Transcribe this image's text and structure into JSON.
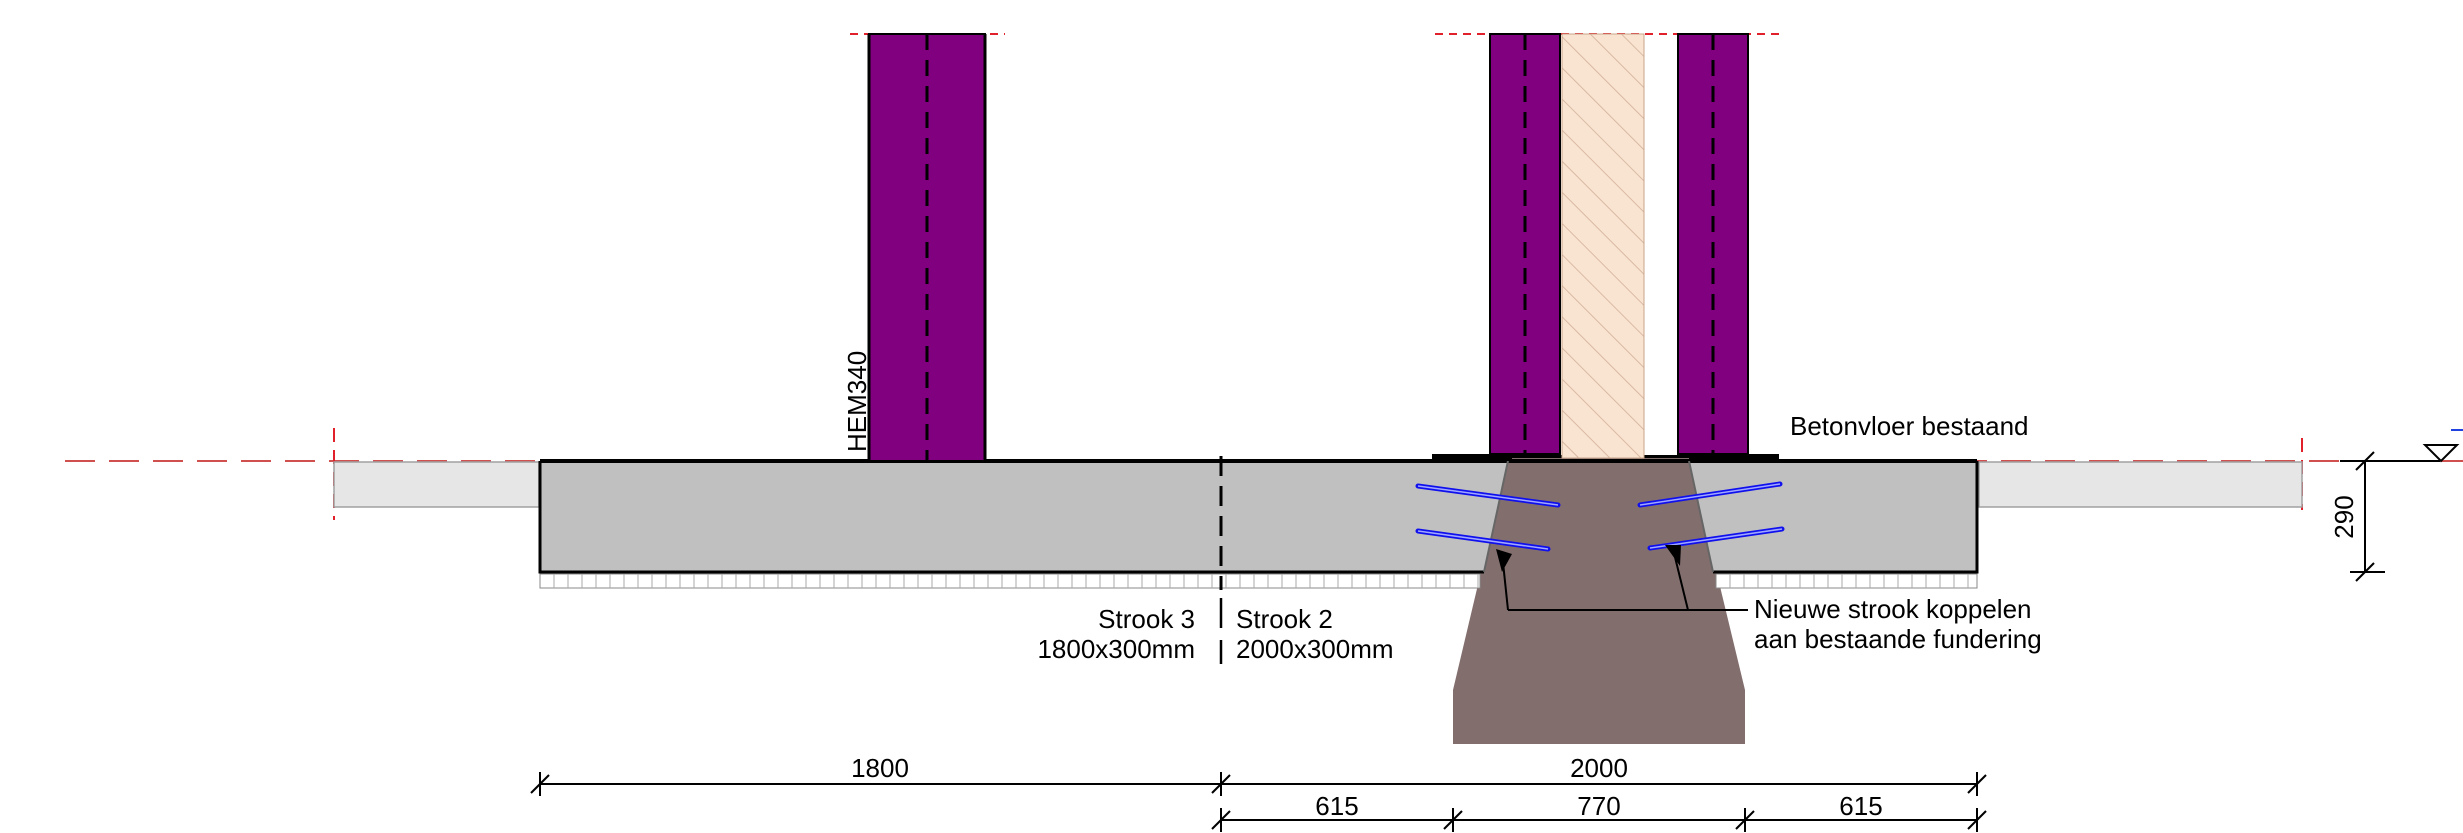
{
  "labels": {
    "profile": "HEM340",
    "floor_existing": "Betonvloer bestaand",
    "strip3_name": "Strook 3",
    "strip3_size": "1800x300mm",
    "strip2_name": "Strook 2",
    "strip2_size": "2000x300mm",
    "coupling_line1": "Nieuwe strook koppelen",
    "coupling_line2": "aan bestaande fundering",
    "height_dim": "290"
  },
  "dimensions": {
    "row1": [
      "1800",
      "2000"
    ],
    "row2": [
      "615",
      "770",
      "615"
    ]
  },
  "colors": {
    "steel_column": "#800080",
    "concrete_new": "#c0c0c0",
    "foundation_existing": "#836e6e",
    "floor_existing": "#e6e6e6",
    "masonry_hatch": "#f9e4d2",
    "anchors": "#1010ee",
    "centerline": "#e0202a"
  },
  "icons": [
    "level-marker-icon",
    "dimension-tick-icon",
    "leader-arrow-icon"
  ]
}
